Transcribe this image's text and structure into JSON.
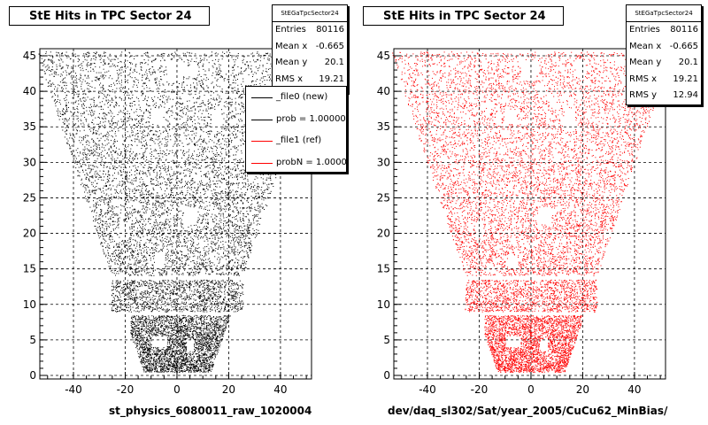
{
  "chart_data": [
    {
      "type": "scatter",
      "title": "StE Hits in TPC Sector 24",
      "xlabel": "st_physics_6080011_raw_1020004",
      "ylabel": "",
      "xlim": [
        -53,
        52
      ],
      "ylim": [
        -0.5,
        46
      ],
      "xticks": [
        -40,
        -20,
        0,
        20,
        40
      ],
      "yticks": [
        0,
        5,
        10,
        15,
        20,
        25,
        30,
        35,
        40,
        45
      ],
      "grid": true,
      "marker_color": "#000000",
      "stats": {
        "name": "StEGaTpcSector24",
        "rows": [
          {
            "key": "Entries",
            "value": "80116"
          },
          {
            "key": "Mean x",
            "value": "-0.665"
          },
          {
            "key": "Mean y",
            "value": "20.1"
          },
          {
            "key": "RMS x",
            "value": "19.21"
          }
        ]
      },
      "legend": {
        "placement": "top-right",
        "entries": [
          {
            "label": "_file0 (new)",
            "color": "#000000"
          },
          {
            "label": "prob = 1.000000",
            "color": "#000000"
          },
          {
            "label": "_file1 (ref)",
            "color": "#ff0000"
          },
          {
            "label": "probN = 1.000000",
            "color": "#ff0000"
          }
        ]
      }
    },
    {
      "type": "scatter",
      "title": "StE Hits in TPC Sector 24",
      "xlabel": "dev/daq_sl302/Sat/year_2005/CuCu62_MinBias/",
      "ylabel": "",
      "xlim": [
        -53,
        52
      ],
      "ylim": [
        -0.5,
        46
      ],
      "xticks": [
        -40,
        -20,
        0,
        20,
        40
      ],
      "yticks": [
        0,
        5,
        10,
        15,
        20,
        25,
        30,
        35,
        40,
        45
      ],
      "grid": true,
      "marker_color": "#ff0000",
      "stats": {
        "name": "StEGaTpcSector24",
        "rows": [
          {
            "key": "Entries",
            "value": "80116"
          },
          {
            "key": "Mean x",
            "value": "-0.665"
          },
          {
            "key": "Mean y",
            "value": "20.1"
          },
          {
            "key": "RMS x",
            "value": "19.21"
          },
          {
            "key": "RMS y",
            "value": "12.94"
          }
        ]
      }
    }
  ]
}
